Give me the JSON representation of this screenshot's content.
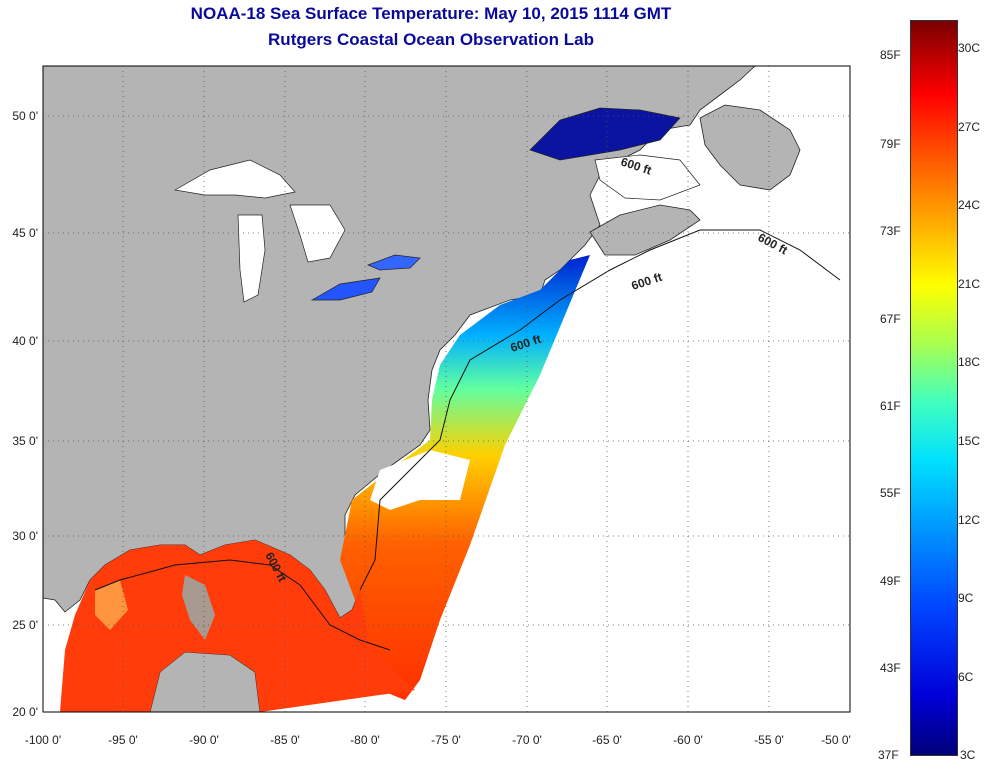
{
  "title": {
    "line1": "NOAA-18 Sea Surface Temperature:  May 10, 2015 1114 GMT",
    "line2": "Rutgers Coastal Ocean Observation Lab"
  },
  "map": {
    "lon_ticks": [
      "-100 0'",
      "-95 0'",
      "-90 0'",
      "-85 0'",
      "-80 0'",
      "-75 0'",
      "-70 0'",
      "-65 0'",
      "-60 0'",
      "-55 0'",
      "-50 0'"
    ],
    "lat_ticks": [
      "50 0'",
      "45 0'",
      "40 0'",
      "35 0'",
      "30 0'",
      "25 0'",
      "20 0'"
    ],
    "contour_labels": [
      "600 ft",
      "600 ft",
      "600 ft",
      "600 ft",
      "600 ft"
    ],
    "colors": {
      "land": "#b4b4b4",
      "no_data": "#ffffff",
      "warm": "#ff3c00",
      "cold": "#00148c"
    }
  },
  "colorbar": {
    "fahrenheit": [
      "85F",
      "79F",
      "73F",
      "67F",
      "61F",
      "55F",
      "49F",
      "43F",
      "37F"
    ],
    "celsius": [
      "30C",
      "27C",
      "24C",
      "21C",
      "18C",
      "15C",
      "12C",
      "9C",
      "6C",
      "3C"
    ]
  }
}
